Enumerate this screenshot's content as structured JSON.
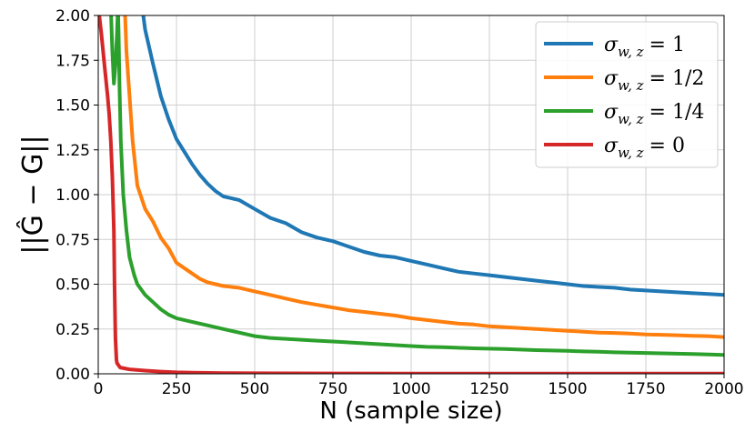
{
  "chart_data": {
    "type": "line",
    "xlabel": "N (sample size)",
    "ylabel": "||Ĝ − G||",
    "xlim": [
      0,
      2000
    ],
    "ylim": [
      0,
      2.0
    ],
    "xticks": [
      "0",
      "250",
      "500",
      "750",
      "1000",
      "1250",
      "1500",
      "1750",
      "2000"
    ],
    "yticks": [
      "0.00",
      "0.25",
      "0.50",
      "0.75",
      "1.00",
      "1.25",
      "1.50",
      "1.75",
      "2.00"
    ],
    "grid": true,
    "legend_position": "top-right",
    "series": [
      {
        "name": "σw,z = 1",
        "color": "#1f77b4",
        "points": [
          [
            140,
            2.05
          ],
          [
            150,
            1.92
          ],
          [
            175,
            1.73
          ],
          [
            200,
            1.55
          ],
          [
            225,
            1.42
          ],
          [
            250,
            1.31
          ],
          [
            275,
            1.24
          ],
          [
            300,
            1.17
          ],
          [
            325,
            1.11
          ],
          [
            350,
            1.06
          ],
          [
            375,
            1.02
          ],
          [
            400,
            0.99
          ],
          [
            450,
            0.97
          ],
          [
            500,
            0.92
          ],
          [
            550,
            0.87
          ],
          [
            600,
            0.84
          ],
          [
            650,
            0.79
          ],
          [
            700,
            0.76
          ],
          [
            750,
            0.74
          ],
          [
            800,
            0.71
          ],
          [
            850,
            0.68
          ],
          [
            900,
            0.66
          ],
          [
            950,
            0.65
          ],
          [
            1000,
            0.63
          ],
          [
            1050,
            0.61
          ],
          [
            1100,
            0.59
          ],
          [
            1150,
            0.57
          ],
          [
            1200,
            0.56
          ],
          [
            1250,
            0.55
          ],
          [
            1300,
            0.54
          ],
          [
            1350,
            0.53
          ],
          [
            1400,
            0.52
          ],
          [
            1450,
            0.51
          ],
          [
            1500,
            0.5
          ],
          [
            1550,
            0.49
          ],
          [
            1600,
            0.485
          ],
          [
            1650,
            0.48
          ],
          [
            1700,
            0.47
          ],
          [
            1750,
            0.465
          ],
          [
            1800,
            0.46
          ],
          [
            1850,
            0.455
          ],
          [
            1900,
            0.45
          ],
          [
            1950,
            0.445
          ],
          [
            2000,
            0.44
          ]
        ]
      },
      {
        "name": "σw,z = 1/2",
        "color": "#ff7f0e",
        "points": [
          [
            85,
            2.05
          ],
          [
            90,
            1.8
          ],
          [
            100,
            1.55
          ],
          [
            110,
            1.3
          ],
          [
            125,
            1.05
          ],
          [
            150,
            0.92
          ],
          [
            175,
            0.85
          ],
          [
            200,
            0.76
          ],
          [
            225,
            0.7
          ],
          [
            250,
            0.62
          ],
          [
            275,
            0.59
          ],
          [
            300,
            0.56
          ],
          [
            325,
            0.53
          ],
          [
            350,
            0.51
          ],
          [
            400,
            0.49
          ],
          [
            450,
            0.48
          ],
          [
            500,
            0.46
          ],
          [
            550,
            0.44
          ],
          [
            600,
            0.42
          ],
          [
            650,
            0.4
          ],
          [
            700,
            0.385
          ],
          [
            750,
            0.37
          ],
          [
            800,
            0.355
          ],
          [
            850,
            0.345
          ],
          [
            900,
            0.335
          ],
          [
            950,
            0.325
          ],
          [
            1000,
            0.31
          ],
          [
            1050,
            0.3
          ],
          [
            1100,
            0.29
          ],
          [
            1150,
            0.28
          ],
          [
            1200,
            0.275
          ],
          [
            1250,
            0.265
          ],
          [
            1300,
            0.26
          ],
          [
            1350,
            0.255
          ],
          [
            1400,
            0.25
          ],
          [
            1450,
            0.245
          ],
          [
            1500,
            0.24
          ],
          [
            1550,
            0.235
          ],
          [
            1600,
            0.23
          ],
          [
            1650,
            0.228
          ],
          [
            1700,
            0.225
          ],
          [
            1750,
            0.22
          ],
          [
            1800,
            0.218
          ],
          [
            1850,
            0.215
          ],
          [
            1900,
            0.212
          ],
          [
            1950,
            0.21
          ],
          [
            2000,
            0.205
          ]
        ]
      },
      {
        "name": "σw,z = 1/4",
        "color": "#2ca02c",
        "points": [
          [
            40,
            2.05
          ],
          [
            45,
            1.8
          ],
          [
            50,
            1.62
          ],
          [
            55,
            1.72
          ],
          [
            60,
            1.9
          ],
          [
            63,
            2.05
          ],
          [
            65,
            1.9
          ],
          [
            68,
            1.6
          ],
          [
            72,
            1.3
          ],
          [
            80,
            1.0
          ],
          [
            90,
            0.8
          ],
          [
            100,
            0.65
          ],
          [
            115,
            0.55
          ],
          [
            125,
            0.5
          ],
          [
            150,
            0.44
          ],
          [
            175,
            0.4
          ],
          [
            200,
            0.36
          ],
          [
            225,
            0.33
          ],
          [
            250,
            0.31
          ],
          [
            300,
            0.29
          ],
          [
            350,
            0.27
          ],
          [
            400,
            0.25
          ],
          [
            450,
            0.23
          ],
          [
            500,
            0.21
          ],
          [
            550,
            0.2
          ],
          [
            600,
            0.195
          ],
          [
            650,
            0.19
          ],
          [
            700,
            0.185
          ],
          [
            750,
            0.18
          ],
          [
            800,
            0.175
          ],
          [
            850,
            0.17
          ],
          [
            900,
            0.165
          ],
          [
            950,
            0.16
          ],
          [
            1000,
            0.155
          ],
          [
            1050,
            0.15
          ],
          [
            1100,
            0.148
          ],
          [
            1150,
            0.145
          ],
          [
            1200,
            0.142
          ],
          [
            1250,
            0.14
          ],
          [
            1300,
            0.138
          ],
          [
            1350,
            0.135
          ],
          [
            1400,
            0.132
          ],
          [
            1450,
            0.13
          ],
          [
            1500,
            0.128
          ],
          [
            1550,
            0.125
          ],
          [
            1600,
            0.123
          ],
          [
            1650,
            0.12
          ],
          [
            1700,
            0.118
          ],
          [
            1750,
            0.116
          ],
          [
            1800,
            0.114
          ],
          [
            1850,
            0.112
          ],
          [
            1900,
            0.11
          ],
          [
            1950,
            0.108
          ],
          [
            2000,
            0.105
          ]
        ]
      },
      {
        "name": "σw,z = 0",
        "color": "#d62728",
        "points": [
          [
            0,
            2.05
          ],
          [
            10,
            1.9
          ],
          [
            20,
            1.72
          ],
          [
            30,
            1.55
          ],
          [
            35,
            1.45
          ],
          [
            40,
            1.3
          ],
          [
            45,
            1.1
          ],
          [
            50,
            0.8
          ],
          [
            52,
            0.5
          ],
          [
            55,
            0.2
          ],
          [
            58,
            0.08
          ],
          [
            60,
            0.06
          ],
          [
            70,
            0.035
          ],
          [
            100,
            0.025
          ],
          [
            150,
            0.018
          ],
          [
            200,
            0.012
          ],
          [
            250,
            0.008
          ],
          [
            300,
            0.006
          ],
          [
            400,
            0.004
          ],
          [
            500,
            0.003
          ],
          [
            750,
            0.002
          ],
          [
            1000,
            0.001
          ],
          [
            1500,
            0.001
          ],
          [
            2000,
            0.001
          ]
        ]
      }
    ]
  },
  "legend": [
    {
      "sym": "σ",
      "sub": "w, z",
      "rhs": "= 1"
    },
    {
      "sym": "σ",
      "sub": "w, z",
      "rhs": "= 1/2"
    },
    {
      "sym": "σ",
      "sub": "w, z",
      "rhs": "= 1/4"
    },
    {
      "sym": "σ",
      "sub": "w, z",
      "rhs": "= 0"
    }
  ]
}
